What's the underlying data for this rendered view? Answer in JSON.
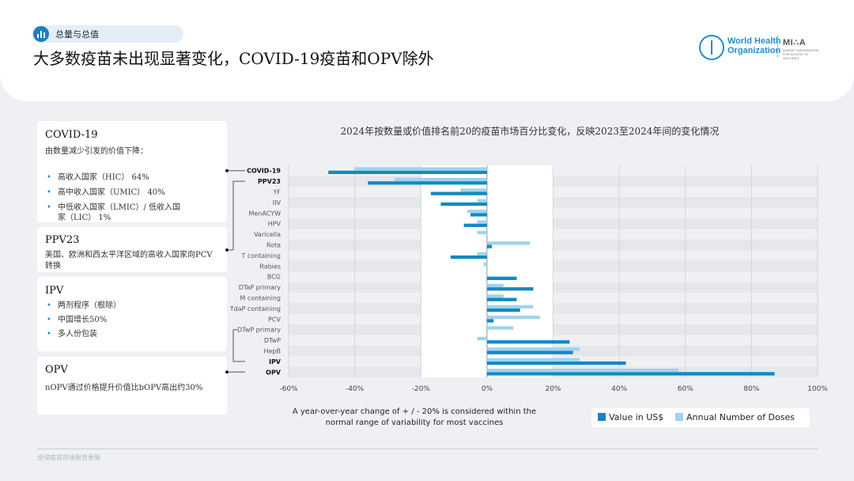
{
  "header": {
    "section_tag": "总量与总值",
    "title": "大多数疫苗未出现显著变化，COVID-19疫苗和OPV除外",
    "who_line1": "World Health",
    "who_line2": "Organization",
    "mia_name": "MI∴A",
    "mia_tagline": "MARKET INFORMATION FOR ACCESS TO VACCINES"
  },
  "cards": {
    "covid": {
      "title": "COVID-19",
      "subtitle": "由数量减少引发的价值下降：",
      "bullets": [
        "高收入国家（HIC） 64%",
        "高中收入国家（UMIC） 40%",
        "中低收入国家（LMIC）/ 低收入国家（LIC） 1%"
      ]
    },
    "ppv23": {
      "title": "PPV23",
      "text": "美国、欧洲和西太平洋区域的高收入国家向PCV转换"
    },
    "ipv": {
      "title": "IPV",
      "bullets": [
        "两剂程序（根除）",
        "中国增长50%",
        "多人份包装"
      ]
    },
    "opv": {
      "title": "OPV",
      "text": "nOPV通过价格提升价值比bOPV高出约30%"
    }
  },
  "chart_data": {
    "type": "bar",
    "orientation": "horizontal",
    "title": "2024年按数量或价值排名前20的疫苗市场百分比变化，反映2023至2024年间的变化情况",
    "categories": [
      "COVID-19",
      "PPV23",
      "YF",
      "IIV",
      "MenACYW",
      "HPV",
      "Varicella",
      "Rota",
      "T containing",
      "Rabies",
      "BCG",
      "DTaP primary",
      "M containing",
      "TdaP containing",
      "PCV",
      "DTwP primary",
      "DTwP",
      "HepB",
      "IPV",
      "OPV"
    ],
    "bold_categories": [
      "COVID-19",
      "PPV23",
      "IPV",
      "OPV"
    ],
    "series": [
      {
        "name": "Value in US$",
        "color": "#1588c1",
        "values": [
          -48,
          -36,
          -17,
          -14,
          -5,
          -7,
          0,
          1.5,
          -11,
          0,
          9,
          14,
          9,
          10,
          2,
          0,
          25,
          26,
          42,
          87
        ]
      },
      {
        "name": "Annual Number of Doses",
        "color": "#9fd3ee",
        "values": [
          -40,
          -28,
          -8,
          -3,
          -6,
          -3,
          -3,
          13,
          -3,
          -1,
          0,
          5,
          5,
          14,
          16,
          8,
          -3,
          28,
          28,
          58
        ]
      }
    ],
    "x_ticks": [
      "-60%",
      "-40%",
      "-20%",
      "0%",
      "20%",
      "40%",
      "60%",
      "80%",
      "100%"
    ],
    "xlim": [
      -60,
      100
    ],
    "highlight_band": [
      -20,
      20
    ],
    "grid": true,
    "legend_position": "bottom-right",
    "note": "A year-over-year change of + / - 20% is considered within the normal range of variability for most vaccines"
  },
  "footer": {
    "text": "全球疫苗市场报告更新"
  }
}
